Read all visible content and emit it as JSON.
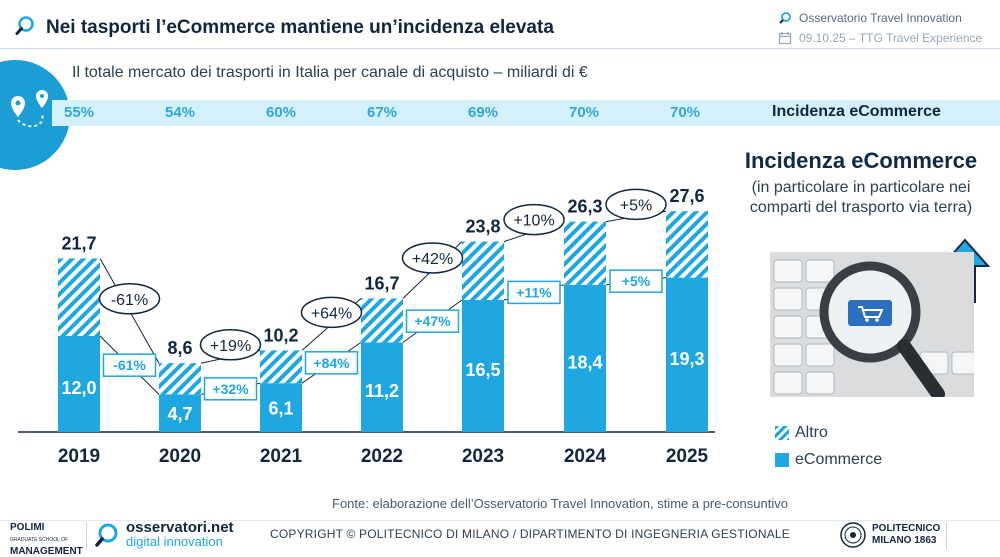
{
  "header": {
    "title": "Nei tasporti l’eCommerce mantiene un’incidenza elevata",
    "org": "Osservatorio Travel Innovation",
    "event": "09.10.25 – TTG Travel Experience"
  },
  "subtitle": "Il totale mercato dei trasporti in Italia per canale di acquisto – miliardi di €",
  "incidence_label": "Incidenza eCommerce",
  "side": {
    "title": "Incidenza eCommerce",
    "subtitle": "(in particolare in particolare nei comparti del trasporto via terra)"
  },
  "source": "Fonte: elaborazione dell’Osservatorio Travel Innovation, stime a pre-consuntivo",
  "copyright": "COPYRIGHT © POLITECNICO DI MILANO / DIPARTIMENTO DI INGEGNERIA GESTIONALE",
  "logos": {
    "polimi_line1": "POLIMI",
    "polimi_small": "GRADUATE SCHOOL OF",
    "polimi_line2": "MANAGEMENT",
    "oss_name": "osservatori.net",
    "oss_sub": "digital innovation",
    "poli_line1": "POLITECNICO",
    "poli_line2": "MILANO 1863"
  },
  "colors": {
    "accent": "#1ea7e1",
    "dark": "#0e2a47",
    "band": "#d4f0fb"
  },
  "chart_data": {
    "type": "bar",
    "stacked": true,
    "title": "Il totale mercato dei trasporti in Italia per canale di acquisto – miliardi di €",
    "categories": [
      "2019",
      "2020",
      "2021",
      "2022",
      "2023",
      "2024",
      "2025"
    ],
    "series": [
      {
        "name": "eCommerce",
        "values": [
          12.0,
          4.7,
          6.1,
          11.2,
          16.5,
          18.4,
          19.3
        ],
        "labels": [
          "12,0",
          "4,7",
          "6,1",
          "11,2",
          "16,5",
          "18,4",
          "19,3"
        ]
      },
      {
        "name": "Altro",
        "values": [
          9.7,
          3.9,
          4.1,
          5.5,
          7.3,
          7.9,
          8.3
        ]
      }
    ],
    "totals": [
      21.7,
      8.6,
      10.2,
      16.7,
      23.8,
      26.3,
      27.6
    ],
    "total_labels": [
      "21,7",
      "8,6",
      "10,2",
      "16,7",
      "23,8",
      "26,3",
      "27,6"
    ],
    "incidence": [
      "55%",
      "54%",
      "60%",
      "67%",
      "69%",
      "70%",
      "70%"
    ],
    "total_growth": [
      "-61%",
      "+19%",
      "+64%",
      "+42%",
      "+10%",
      "+5%"
    ],
    "ecommerce_growth": [
      "-61%",
      "+32%",
      "+84%",
      "+47%",
      "+11%",
      "+5%"
    ],
    "legend": [
      "Altro",
      "eCommerce"
    ],
    "ylim": [
      0,
      30
    ]
  }
}
